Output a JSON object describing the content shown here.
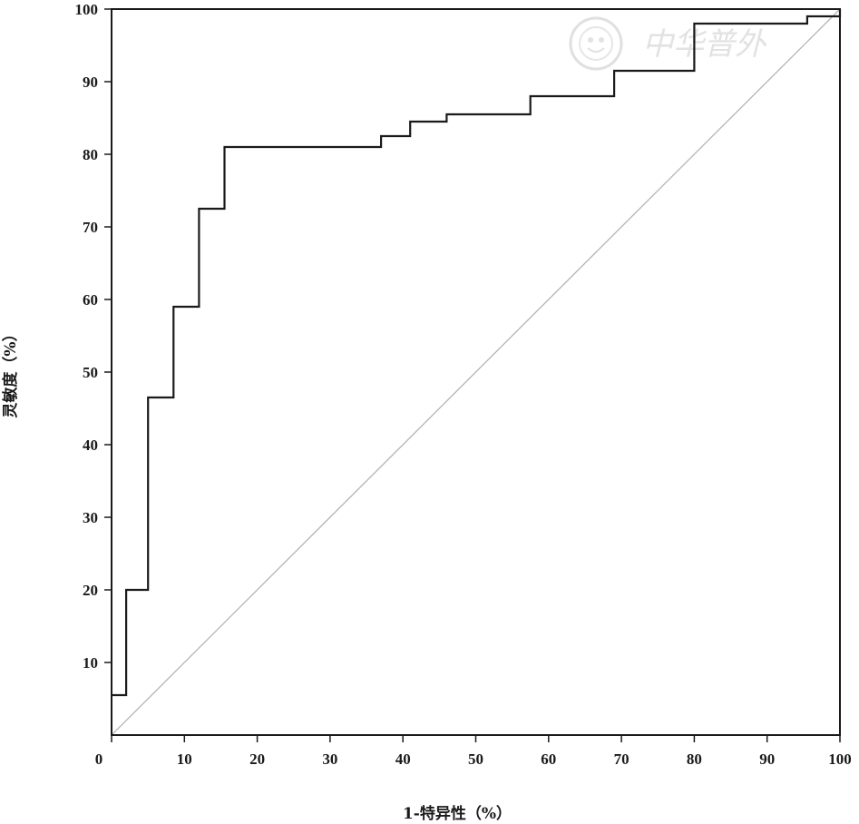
{
  "chart_data": {
    "type": "line",
    "xlabel": "1-特异性（%）",
    "ylabel": "灵敏度（%）",
    "xlim": [
      0,
      100
    ],
    "ylim": [
      0,
      100
    ],
    "x_ticks": [
      0,
      10,
      20,
      30,
      40,
      50,
      60,
      70,
      80,
      90,
      100
    ],
    "y_ticks": [
      10,
      20,
      30,
      40,
      50,
      60,
      70,
      80,
      90,
      100
    ],
    "grid": false,
    "legend": "none",
    "series": [
      {
        "style": "step",
        "color": "#1a1a1a",
        "x": [
          0,
          2,
          2,
          5,
          5,
          8.5,
          8.5,
          12,
          12,
          15.5,
          15.5,
          37,
          37,
          41,
          41,
          46,
          46,
          57.5,
          57.5,
          69,
          69,
          80,
          80,
          95.5,
          95.5,
          100,
          100
        ],
        "y": [
          5.5,
          5.5,
          20,
          20,
          46.5,
          46.5,
          59,
          59,
          72.5,
          72.5,
          81,
          81,
          82.5,
          82.5,
          84.5,
          84.5,
          85.5,
          85.5,
          88,
          88,
          91.5,
          91.5,
          98,
          98,
          99,
          99,
          100
        ]
      },
      {
        "style": "reference",
        "color": "#b4b4b4",
        "x": [
          0,
          100
        ],
        "y": [
          0,
          100
        ]
      }
    ]
  },
  "watermark": {
    "text": "中华普外",
    "icon": "seal-logo-icon"
  }
}
